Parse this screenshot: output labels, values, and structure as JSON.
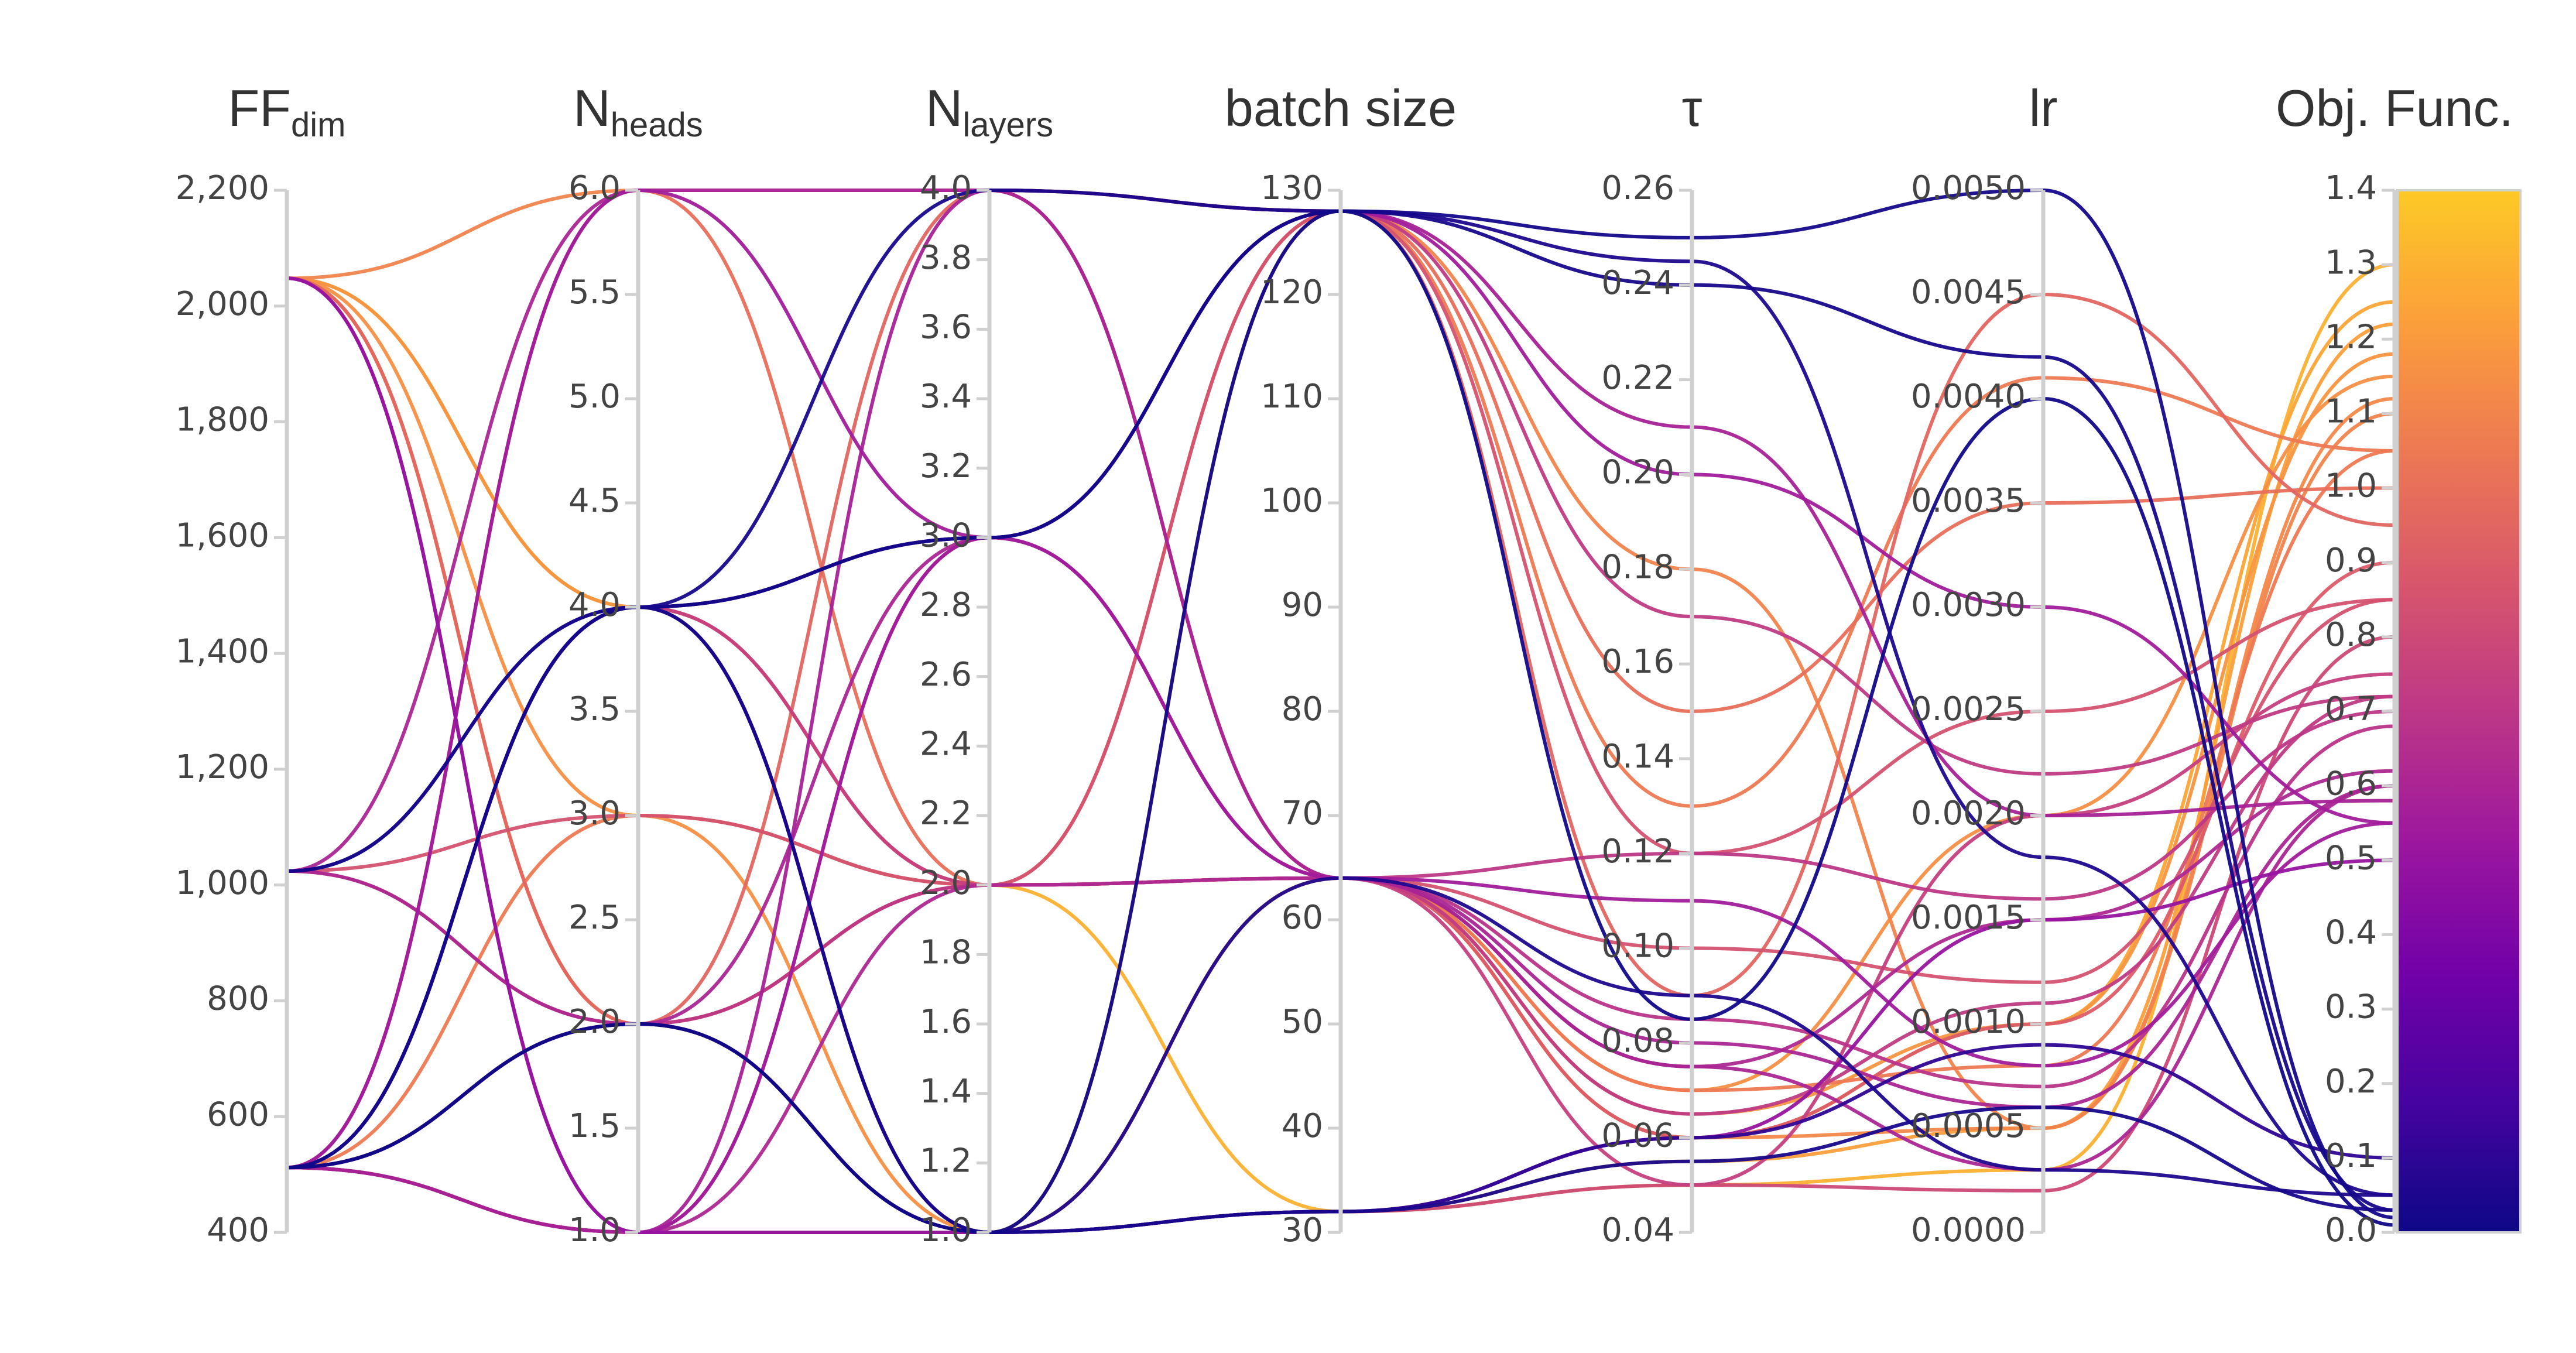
{
  "chart_data": {
    "type": "parallel_coordinates",
    "axes": [
      {
        "key": "ff",
        "title": "FF",
        "sub": "dim",
        "range": [
          400,
          2200
        ],
        "ticks": [
          400,
          600,
          800,
          1000,
          1200,
          1400,
          1600,
          1800,
          2000,
          2200
        ],
        "tick_labels": [
          "400",
          "600",
          "800",
          "1,000",
          "1,200",
          "1,400",
          "1,600",
          "1,800",
          "2,000",
          "2,200"
        ]
      },
      {
        "key": "heads",
        "title": "N",
        "sub": "heads",
        "range": [
          1,
          6
        ],
        "ticks": [
          1,
          1.5,
          2,
          2.5,
          3,
          3.5,
          4,
          4.5,
          5,
          5.5,
          6
        ],
        "tick_labels": [
          "1.0",
          "1.5",
          "2.0",
          "2.5",
          "3.0",
          "3.5",
          "4.0",
          "4.5",
          "5.0",
          "5.5",
          "6.0"
        ]
      },
      {
        "key": "layers",
        "title": "N",
        "sub": "layers",
        "range": [
          1,
          4
        ],
        "ticks": [
          1,
          1.2,
          1.4,
          1.6,
          1.8,
          2,
          2.2,
          2.4,
          2.6,
          2.8,
          3,
          3.2,
          3.4,
          3.6,
          3.8,
          4
        ],
        "tick_labels": [
          "1.0",
          "1.2",
          "1.4",
          "1.6",
          "1.8",
          "2.0",
          "2.2",
          "2.4",
          "2.6",
          "2.8",
          "3.0",
          "3.2",
          "3.4",
          "3.6",
          "3.8",
          "4.0"
        ]
      },
      {
        "key": "batch",
        "title": "batch size",
        "sub": "",
        "range": [
          30,
          130
        ],
        "ticks": [
          30,
          40,
          50,
          60,
          70,
          80,
          90,
          100,
          110,
          120,
          130
        ],
        "tick_labels": [
          "30",
          "40",
          "50",
          "60",
          "70",
          "80",
          "90",
          "100",
          "110",
          "120",
          "130"
        ]
      },
      {
        "key": "tau",
        "title": "τ",
        "sub": "",
        "range": [
          0.04,
          0.26
        ],
        "ticks": [
          0.04,
          0.06,
          0.08,
          0.1,
          0.12,
          0.14,
          0.16,
          0.18,
          0.2,
          0.22,
          0.24,
          0.26
        ],
        "tick_labels": [
          "0.04",
          "0.06",
          "0.08",
          "0.10",
          "0.12",
          "0.14",
          "0.16",
          "0.18",
          "0.20",
          "0.22",
          "0.24",
          "0.26"
        ]
      },
      {
        "key": "lr",
        "title": "lr",
        "sub": "",
        "range": [
          0,
          0.005
        ],
        "ticks": [
          0,
          0.0005,
          0.001,
          0.0015,
          0.002,
          0.0025,
          0.003,
          0.0035,
          0.004,
          0.0045,
          0.005
        ],
        "tick_labels": [
          "0.0000",
          "0.0005",
          "0.0010",
          "0.0015",
          "0.0020",
          "0.0025",
          "0.0030",
          "0.0035",
          "0.0040",
          "0.0045",
          "0.0050"
        ]
      },
      {
        "key": "obj",
        "title": "Obj. Func.",
        "sub": "",
        "range": [
          0,
          1.4
        ],
        "ticks": [
          0,
          0.1,
          0.2,
          0.3,
          0.4,
          0.5,
          0.6,
          0.7,
          0.8,
          0.9,
          1,
          1.1,
          1.2,
          1.3,
          1.4
        ],
        "tick_labels": [
          "0.0",
          "0.1",
          "0.2",
          "0.3",
          "0.4",
          "0.5",
          "0.6",
          "0.7",
          "0.8",
          "0.9",
          "1.0",
          "1.1",
          "1.2",
          "1.3",
          "1.4"
        ]
      }
    ],
    "colorscale": {
      "name": "plasma",
      "stops": [
        "#0d0887",
        "#46039f",
        "#7201a8",
        "#9c179e",
        "#bd3786",
        "#d8576b",
        "#ed7953",
        "#fb9f3a",
        "#fdca26"
      ],
      "range": [
        0,
        1.4
      ]
    },
    "records": [
      [
        2048,
        6,
        4,
        128,
        0.18,
        0.0005,
        1.1
      ],
      [
        2048,
        4,
        1,
        64,
        0.06,
        0.001,
        1.25
      ],
      [
        2048,
        2,
        2,
        32,
        0.05,
        0.0003,
        1.3
      ],
      [
        2048,
        3,
        1,
        64,
        0.07,
        0.002,
        1.15
      ],
      [
        2048,
        2,
        4,
        128,
        0.09,
        0.0045,
        0.95
      ],
      [
        2048,
        1,
        3,
        64,
        0.11,
        0.0008,
        0.55
      ],
      [
        2048,
        1,
        1,
        32,
        0.06,
        0.0015,
        0.5
      ],
      [
        1024,
        3,
        2,
        64,
        0.1,
        0.0012,
        0.85
      ],
      [
        1024,
        2,
        1,
        128,
        0.13,
        0.0041,
        1.05
      ],
      [
        1024,
        4,
        3,
        128,
        0.245,
        0.0018,
        0.05
      ],
      [
        1024,
        6,
        4,
        64,
        0.08,
        0.0006,
        0.6
      ],
      [
        512,
        6,
        3,
        128,
        0.2,
        0.003,
        0.55
      ],
      [
        512,
        4,
        2,
        64,
        0.05,
        0.002,
        0.75
      ],
      [
        512,
        4,
        4,
        128,
        0.24,
        0.0042,
        0.03
      ],
      [
        512,
        4,
        3,
        128,
        0.25,
        0.005,
        0.02
      ],
      [
        512,
        4,
        1,
        32,
        0.06,
        0.0009,
        0.1
      ],
      [
        512,
        2,
        1,
        64,
        0.09,
        0.0003,
        0.05
      ],
      [
        512,
        2,
        2,
        64,
        0.12,
        0.0016,
        0.7
      ],
      [
        512,
        1,
        1,
        32,
        0.05,
        0.0002,
        0.8
      ],
      [
        512,
        2,
        1,
        128,
        0.085,
        0.004,
        0.01
      ],
      [
        512,
        3,
        2,
        64,
        0.07,
        0.0008,
        1.05
      ],
      [
        512,
        6,
        4,
        64,
        0.065,
        0.0011,
        0.72
      ],
      [
        512,
        1,
        2,
        64,
        0.075,
        0.0015,
        0.62
      ],
      [
        512,
        2,
        1,
        32,
        0.055,
        0.0005,
        1.22
      ],
      [
        512,
        4,
        2,
        64,
        0.06,
        0.001,
        0.9
      ],
      [
        512,
        1,
        3,
        128,
        0.17,
        0.0022,
        0.72
      ],
      [
        1024,
        4,
        1,
        32,
        0.055,
        0.0006,
        0.03
      ],
      [
        512,
        2,
        2,
        128,
        0.12,
        0.0025,
        0.85
      ],
      [
        2048,
        4,
        2,
        64,
        0.065,
        0.001,
        1.18
      ],
      [
        1024,
        2,
        3,
        64,
        0.075,
        0.0003,
        0.6
      ],
      [
        512,
        6,
        2,
        128,
        0.15,
        0.0035,
        1.0
      ],
      [
        512,
        4,
        3,
        64,
        0.085,
        0.0007,
        0.68
      ],
      [
        2048,
        2,
        1,
        64,
        0.06,
        0.0005,
        1.12
      ],
      [
        512,
        1,
        4,
        128,
        0.21,
        0.002,
        0.58
      ]
    ]
  }
}
